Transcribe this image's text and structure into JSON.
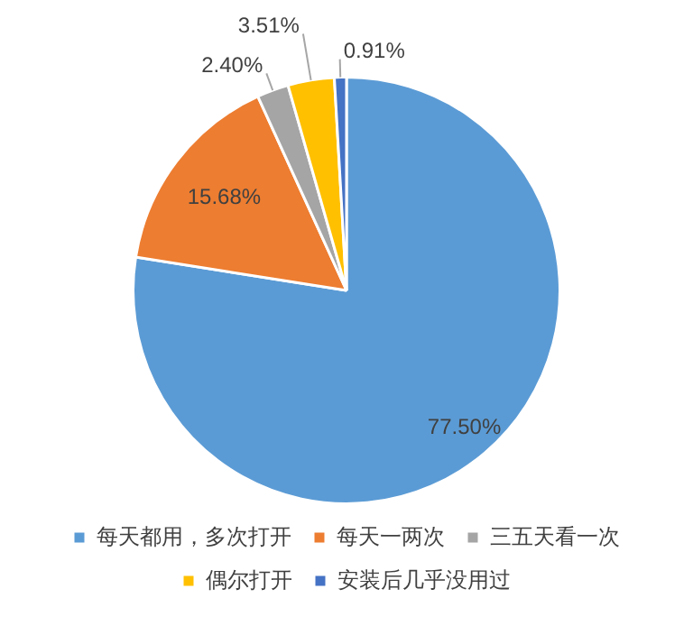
{
  "chart_data": {
    "type": "pie",
    "categories": [
      "每天都用，多次打开",
      "每天一两次",
      "三五天看一次",
      "偶尔打开",
      "安装后几乎没用过"
    ],
    "values": [
      77.5,
      15.68,
      2.4,
      3.51,
      0.91
    ],
    "colors": [
      "#5b9bd5",
      "#ed7d31",
      "#a5a5a5",
      "#ffc000",
      "#4472c4"
    ],
    "value_labels": [
      "77.50%",
      "15.68%",
      "2.40%",
      "3.51%",
      "0.91%"
    ],
    "legend": "bottom"
  }
}
